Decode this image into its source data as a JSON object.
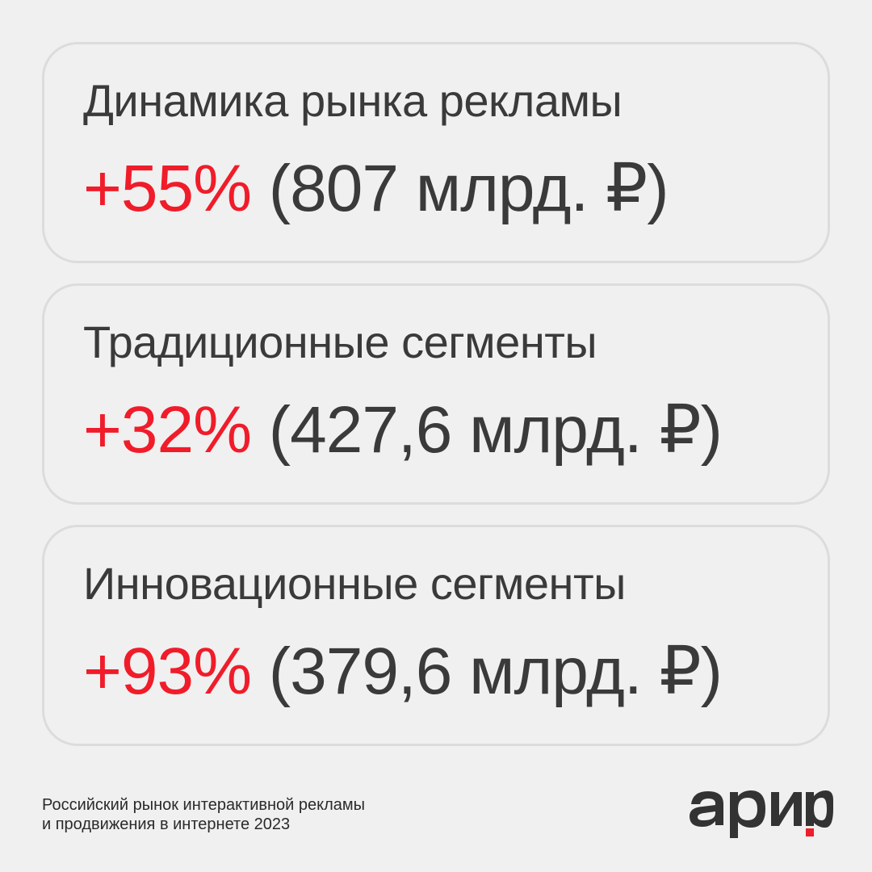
{
  "cards": [
    {
      "title": "Динамика рынка рекламы",
      "percent": "+55%",
      "amount": " (807 млрд. ₽)"
    },
    {
      "title": "Традиционные сегменты",
      "percent": "+32%",
      "amount": " (427,6 млрд. ₽)"
    },
    {
      "title": "Инновационные сегменты",
      "percent": "+93%",
      "amount": " (379,6 млрд. ₽)"
    }
  ],
  "footer": {
    "line1": "Российский рынок интерактивной рекламы",
    "line2": "и продвижения в интернете 2023"
  },
  "logo": {
    "text": "арир"
  },
  "colors": {
    "accent": "#f01c2a",
    "text": "#3a3a3a",
    "background": "#f0f0f0",
    "card_border": "#dcdcdc"
  }
}
